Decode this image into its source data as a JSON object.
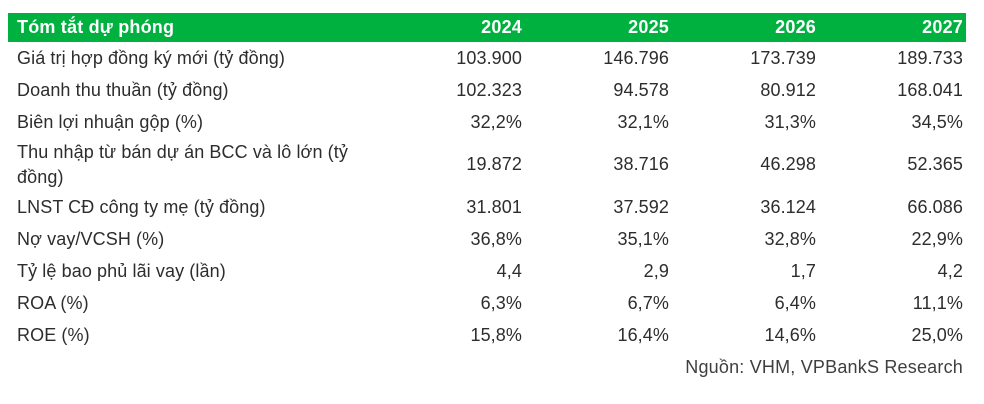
{
  "table": {
    "header": {
      "title": "Tóm tắt dự phóng",
      "years": [
        "2024",
        "2025",
        "2026",
        "2027"
      ]
    },
    "rows": [
      {
        "label": "Giá trị hợp đồng ký mới (tỷ đồng)",
        "values": [
          "103.900",
          "146.796",
          "173.739",
          "189.733"
        ]
      },
      {
        "label": "Doanh thu thuần (tỷ đồng)",
        "values": [
          "102.323",
          "94.578",
          "80.912",
          "168.041"
        ]
      },
      {
        "label": "Biên lợi nhuận gộp (%)",
        "values": [
          "32,2%",
          "32,1%",
          "31,3%",
          "34,5%"
        ]
      },
      {
        "label": "Thu nhập từ bán dự án BCC và lô lớn (tỷ đồng)",
        "values": [
          "19.872",
          "38.716",
          "46.298",
          "52.365"
        ]
      },
      {
        "label": "LNST CĐ công ty mẹ (tỷ đồng)",
        "values": [
          "31.801",
          "37.592",
          "36.124",
          "66.086"
        ]
      },
      {
        "label": "Nợ vay/VCSH (%)",
        "values": [
          "36,8%",
          "35,1%",
          "32,8%",
          "22,9%"
        ]
      },
      {
        "label": "Tỷ lệ bao phủ lãi vay (lần)",
        "values": [
          "4,4",
          "2,9",
          "1,7",
          "4,2"
        ]
      },
      {
        "label": "ROA (%)",
        "values": [
          "6,3%",
          "6,7%",
          "6,4%",
          "11,1%"
        ]
      },
      {
        "label": "ROE (%)",
        "values": [
          "15,8%",
          "16,4%",
          "14,6%",
          "25,0%"
        ]
      }
    ],
    "source": "Nguồn: VHM, VPBankS Research",
    "colors": {
      "header_bg": "#00B140",
      "header_text": "#FFFFFF",
      "body_text": "#2D2D2D"
    }
  },
  "chart_data": {
    "type": "table",
    "title": "Tóm tắt dự phóng",
    "columns": [
      "Tóm tắt dự phóng",
      "2024",
      "2025",
      "2026",
      "2027"
    ],
    "rows": [
      [
        "Giá trị hợp đồng ký mới (tỷ đồng)",
        "103.900",
        "146.796",
        "173.739",
        "189.733"
      ],
      [
        "Doanh thu thuần (tỷ đồng)",
        "102.323",
        "94.578",
        "80.912",
        "168.041"
      ],
      [
        "Biên lợi nhuận gộp (%)",
        "32,2%",
        "32,1%",
        "31,3%",
        "34,5%"
      ],
      [
        "Thu nhập từ bán dự án BCC và lô lớn (tỷ đồng)",
        "19.872",
        "38.716",
        "46.298",
        "52.365"
      ],
      [
        "LNST CĐ công ty mẹ (tỷ đồng)",
        "31.801",
        "37.592",
        "36.124",
        "66.086"
      ],
      [
        "Nợ vay/VCSH (%)",
        "36,8%",
        "35,1%",
        "32,8%",
        "22,9%"
      ],
      [
        "Tỷ lệ bao phủ lãi vay (lần)",
        "4,4",
        "2,9",
        "1,7",
        "4,2"
      ],
      [
        "ROA (%)",
        "6,3%",
        "6,7%",
        "6,4%",
        "11,1%"
      ],
      [
        "ROE (%)",
        "15,8%",
        "16,4%",
        "14,6%",
        "25,0%"
      ]
    ],
    "source_note": "Nguồn: VHM, VPBankS Research"
  }
}
